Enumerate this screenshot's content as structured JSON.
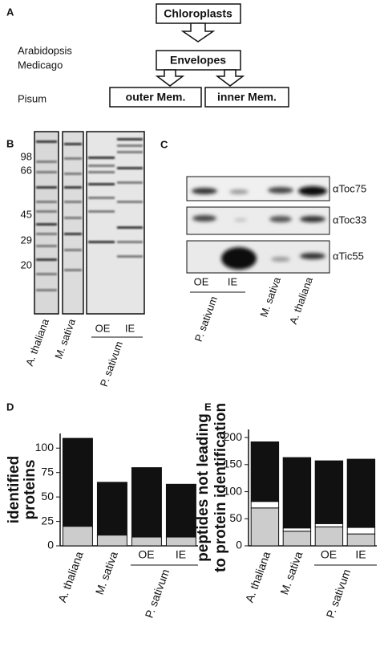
{
  "panel_a": {
    "letter": "A",
    "species": [
      "Arabidopsis",
      "Medicago",
      "Pisum"
    ],
    "nodes": [
      "Chloroplasts",
      "Envelopes",
      "outer Mem.",
      "inner Mem."
    ]
  },
  "panel_b": {
    "letter": "B",
    "markers": [
      "98",
      "66",
      "45",
      "29",
      "20"
    ],
    "lanes": [
      "A. thaliana",
      "M. sativa",
      "OE",
      "IE"
    ],
    "group_label": "P. sativum"
  },
  "panel_c": {
    "letter": "C",
    "antibodies": [
      "αToc75",
      "αToc33",
      "αTic55"
    ],
    "lanes": [
      "OE",
      "IE",
      "M. sativa",
      "A. thaliana"
    ],
    "group_label": "P. sativum"
  },
  "chart_data": [
    {
      "type": "stacked-bar",
      "letter": "D",
      "ylabel": [
        "identified",
        "proteins"
      ],
      "categories": [
        "A. thaliana",
        "M. sativa",
        "OE",
        "IE"
      ],
      "group_label": "P. sativum",
      "series": [
        {
          "color": "#cccccc",
          "values": [
            20,
            11,
            9,
            9
          ]
        },
        {
          "color": "#111111",
          "values": [
            90,
            54,
            71,
            54
          ]
        }
      ],
      "ylim": [
        0,
        115
      ],
      "yticks": [
        0,
        25,
        50,
        75,
        100
      ]
    },
    {
      "type": "stacked-bar",
      "letter": "E",
      "ylabel": [
        "peptides not leading",
        "to protein identification"
      ],
      "categories": [
        "A. thaliana",
        "M. sativa",
        "OE",
        "IE"
      ],
      "group_label": "P. sativum",
      "series": [
        {
          "color": "#cccccc",
          "values": [
            70,
            27,
            35,
            22
          ]
        },
        {
          "color": "#ffffff",
          "values": [
            12,
            6,
            6,
            12
          ]
        },
        {
          "color": "#111111",
          "values": [
            110,
            130,
            116,
            126
          ]
        }
      ],
      "ylim": [
        0,
        215
      ],
      "yticks": [
        0,
        50,
        100,
        150,
        200
      ]
    }
  ]
}
